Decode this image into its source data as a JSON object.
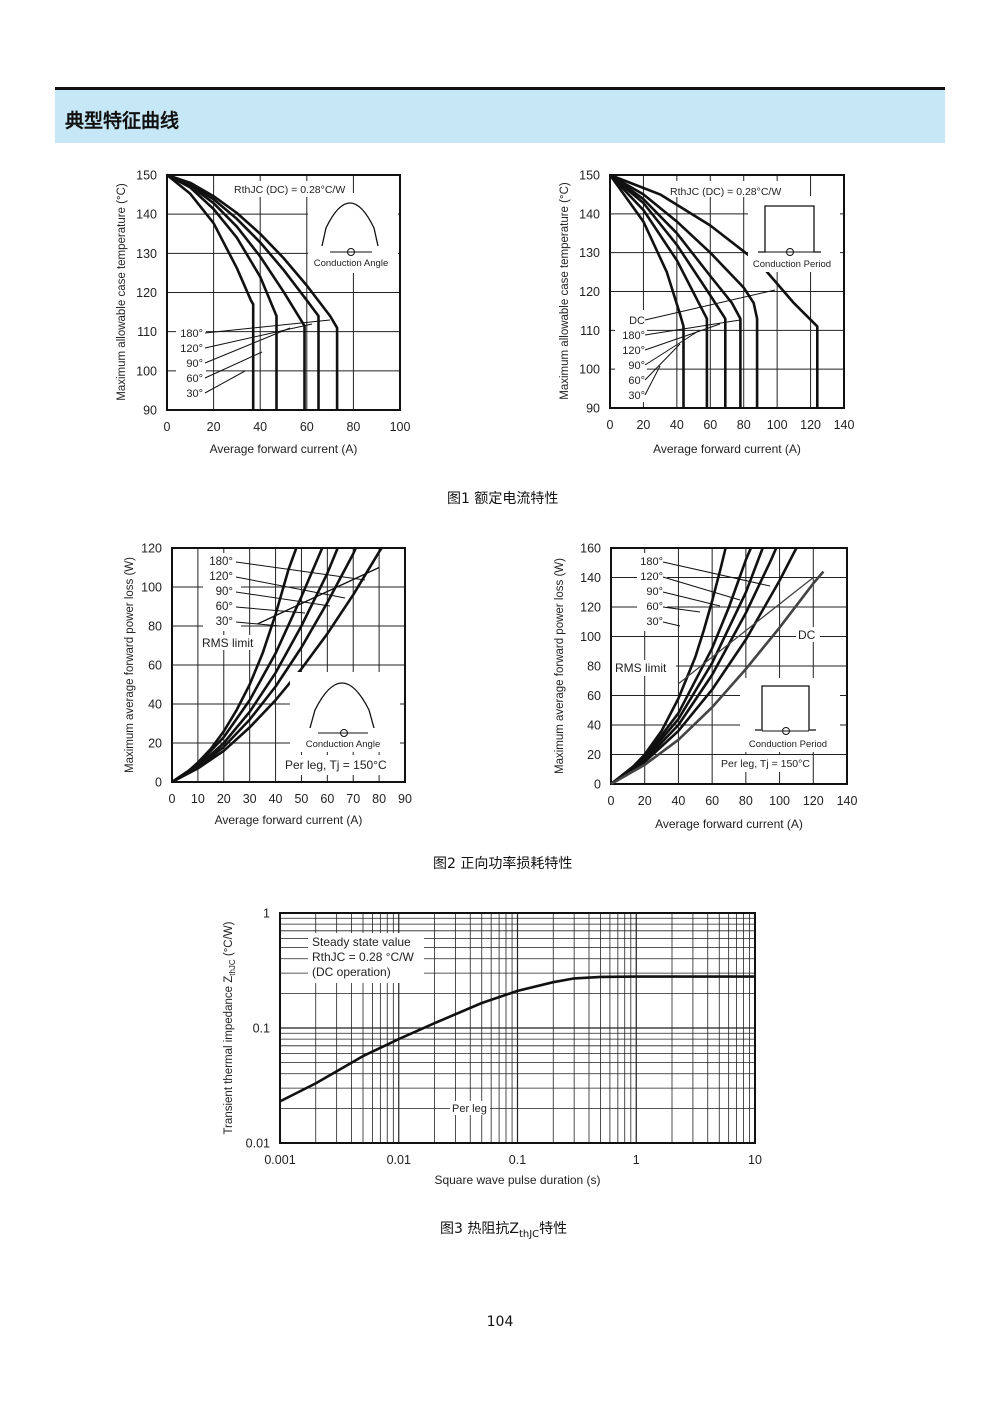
{
  "section_title": "典型特征曲线",
  "figure_captions": {
    "fig1": "图1  额定电流特性",
    "fig2": "图2  正向功率损耗特性",
    "fig3_prefix": "图3  热阻抗Z",
    "fig3_sub": "thJC",
    "fig3_suffix": "特性"
  },
  "page_number": "104",
  "chart_data": [
    {
      "id": "fig1-left",
      "type": "line",
      "xlabel": "Average forward current (A)",
      "ylabel": "Maximum allowable case temperature (°C)",
      "xlim": [
        0,
        100
      ],
      "ylim": [
        90,
        150
      ],
      "x_ticks": [
        0,
        20,
        40,
        60,
        80,
        100
      ],
      "y_ticks": [
        90,
        100,
        110,
        120,
        130,
        140,
        150
      ],
      "grid": true,
      "annotation": "RthJC (DC) = 0.28°C/W",
      "inset_label": "Conduction Angle",
      "series": [
        {
          "name": "30°",
          "points": [
            [
              0,
              150
            ],
            [
              10,
              145.2
            ],
            [
              20,
              137.7
            ],
            [
              30,
              126.2
            ],
            [
              36,
              118
            ],
            [
              37,
              117
            ]
          ],
          "drop_to": 90
        },
        {
          "name": "60°",
          "points": [
            [
              0,
              150
            ],
            [
              10,
              146.8
            ],
            [
              20,
              141.3
            ],
            [
              30,
              134
            ],
            [
              40,
              124
            ],
            [
              47,
              114
            ]
          ],
          "drop_to": 90
        },
        {
          "name": "90°",
          "points": [
            [
              0,
              150
            ],
            [
              10,
              147.3
            ],
            [
              20,
              142.8
            ],
            [
              30,
              136.8
            ],
            [
              40,
              129.2
            ],
            [
              50,
              120.2
            ],
            [
              59,
              111.5
            ]
          ],
          "drop_to": 90
        },
        {
          "name": "120°",
          "points": [
            [
              0,
              150
            ],
            [
              10,
              147.6
            ],
            [
              20,
              143.8
            ],
            [
              30,
              138.8
            ],
            [
              40,
              132.8
            ],
            [
              50,
              125.8
            ],
            [
              60,
              118
            ],
            [
              65,
              114
            ]
          ],
          "drop_to": 90
        },
        {
          "name": "180°",
          "points": [
            [
              0,
              150
            ],
            [
              10,
              148
            ],
            [
              20,
              144.6
            ],
            [
              30,
              140.3
            ],
            [
              40,
              135
            ],
            [
              50,
              128.8
            ],
            [
              60,
              121.8
            ],
            [
              70,
              114
            ],
            [
              73,
              111
            ]
          ],
          "drop_to": 90
        }
      ]
    },
    {
      "id": "fig1-right",
      "type": "line",
      "xlabel": "Average forward current (A)",
      "ylabel": "Maximum allowable case temperature (°C)",
      "xlim": [
        0,
        140
      ],
      "ylim": [
        90,
        150
      ],
      "x_ticks": [
        0,
        20,
        40,
        60,
        80,
        100,
        120,
        140
      ],
      "y_ticks": [
        90,
        100,
        110,
        120,
        130,
        140,
        150
      ],
      "grid": true,
      "annotation": "RthJC (DC) = 0.28°C/W",
      "inset_label": "Conduction Period",
      "series": [
        {
          "name": "30°",
          "points": [
            [
              0,
              150
            ],
            [
              20,
              138
            ],
            [
              34,
              125
            ],
            [
              42,
              114
            ],
            [
              44,
              111
            ]
          ],
          "drop_to": 90
        },
        {
          "name": "60°",
          "points": [
            [
              0,
              150
            ],
            [
              20,
              141
            ],
            [
              40,
              128
            ],
            [
              52,
              118
            ],
            [
              58,
              113
            ]
          ],
          "drop_to": 90
        },
        {
          "name": "90°",
          "points": [
            [
              0,
              150
            ],
            [
              20,
              142.8
            ],
            [
              40,
              132
            ],
            [
              60,
              119
            ],
            [
              69,
              113
            ]
          ],
          "drop_to": 90
        },
        {
          "name": "120°",
          "points": [
            [
              0,
              150
            ],
            [
              20,
              143.8
            ],
            [
              40,
              135
            ],
            [
              60,
              124
            ],
            [
              73,
              117
            ],
            [
              78,
              113
            ]
          ],
          "drop_to": 90
        },
        {
          "name": "180°",
          "points": [
            [
              0,
              150
            ],
            [
              20,
              145
            ],
            [
              40,
              138
            ],
            [
              60,
              130
            ],
            [
              80,
              121
            ],
            [
              86,
              117
            ],
            [
              88,
              113
            ]
          ],
          "drop_to": 90
        },
        {
          "name": "DC",
          "points": [
            [
              0,
              150
            ],
            [
              30,
              145
            ],
            [
              60,
              137
            ],
            [
              90,
              127
            ],
            [
              110,
              117
            ],
            [
              124,
              111
            ]
          ],
          "drop_to": 90
        }
      ]
    },
    {
      "id": "fig2-left",
      "type": "line",
      "xlabel": "Average forward current (A)",
      "ylabel": "Maximum average forward power loss (W)",
      "xlim": [
        0,
        90
      ],
      "ylim": [
        0,
        120
      ],
      "x_ticks": [
        0,
        10,
        20,
        30,
        40,
        50,
        60,
        70,
        80,
        90
      ],
      "y_ticks": [
        0,
        20,
        40,
        60,
        80,
        100,
        120
      ],
      "grid": true,
      "annotations": [
        "Conduction Angle",
        "Per leg, Tj = 150°C"
      ],
      "series": [
        {
          "name": "30°",
          "points": [
            [
              0,
              0
            ],
            [
              5,
              4
            ],
            [
              10,
              10
            ],
            [
              15,
              17
            ],
            [
              20,
              26
            ],
            [
              25,
              37
            ],
            [
              30,
              50
            ],
            [
              35,
              66
            ],
            [
              40,
              86
            ],
            [
              45,
              109
            ],
            [
              48,
              120
            ]
          ]
        },
        {
          "name": "60°",
          "points": [
            [
              0,
              0
            ],
            [
              10,
              9
            ],
            [
              20,
              23
            ],
            [
              30,
              42
            ],
            [
              40,
              66
            ],
            [
              50,
              95
            ],
            [
              58,
              120
            ]
          ]
        },
        {
          "name": "90°",
          "points": [
            [
              0,
              0
            ],
            [
              10,
              8
            ],
            [
              20,
              20
            ],
            [
              30,
              36
            ],
            [
              40,
              56
            ],
            [
              50,
              80
            ],
            [
              60,
              107
            ],
            [
              64,
              120
            ]
          ]
        },
        {
          "name": "120°",
          "points": [
            [
              0,
              0
            ],
            [
              10,
              7.5
            ],
            [
              20,
              18
            ],
            [
              30,
              32
            ],
            [
              40,
              49
            ],
            [
              50,
              69
            ],
            [
              60,
              92
            ],
            [
              70,
              117
            ],
            [
              71,
              120
            ]
          ]
        },
        {
          "name": "180°",
          "points": [
            [
              0,
              0
            ],
            [
              10,
              7
            ],
            [
              20,
              16
            ],
            [
              30,
              28
            ],
            [
              40,
              42
            ],
            [
              50,
              58
            ],
            [
              60,
              76
            ],
            [
              70,
              96
            ],
            [
              80,
              118
            ],
            [
              81,
              120
            ]
          ]
        },
        {
          "name": "RMS limit",
          "points": [
            [
              33,
              81
            ],
            [
              80,
              110
            ]
          ]
        }
      ]
    },
    {
      "id": "fig2-right",
      "type": "line",
      "xlabel": "Average forward current (A)",
      "ylabel": "Maximum average forward power loss (W)",
      "xlim": [
        0,
        140
      ],
      "ylim": [
        0,
        160
      ],
      "x_ticks": [
        0,
        20,
        40,
        60,
        80,
        100,
        120,
        140
      ],
      "y_ticks": [
        0,
        20,
        40,
        60,
        80,
        100,
        120,
        140,
        160
      ],
      "grid": true,
      "annotations": [
        "Conduction Period",
        "Per leg, Tj = 150°C"
      ],
      "series": [
        {
          "name": "30°",
          "points": [
            [
              0,
              0
            ],
            [
              10,
              8
            ],
            [
              20,
              20
            ],
            [
              30,
              36
            ],
            [
              40,
              58
            ],
            [
              50,
              86
            ],
            [
              55,
              104
            ],
            [
              60,
              124
            ],
            [
              65,
              146
            ],
            [
              68,
              160
            ]
          ]
        },
        {
          "name": "60°",
          "points": [
            [
              0,
              0
            ],
            [
              20,
              18
            ],
            [
              40,
              48
            ],
            [
              60,
              92
            ],
            [
              70,
              120
            ],
            [
              80,
              152
            ],
            [
              83,
              160
            ]
          ]
        },
        {
          "name": "90°",
          "points": [
            [
              0,
              0
            ],
            [
              20,
              17
            ],
            [
              40,
              44
            ],
            [
              60,
              82
            ],
            [
              80,
              130
            ],
            [
              90,
              160
            ]
          ]
        },
        {
          "name": "120°",
          "points": [
            [
              0,
              0
            ],
            [
              20,
              16
            ],
            [
              40,
              40
            ],
            [
              60,
              74
            ],
            [
              80,
              116
            ],
            [
              95,
              152
            ],
            [
              98,
              160
            ]
          ]
        },
        {
          "name": "180°",
          "points": [
            [
              0,
              0
            ],
            [
              20,
              15
            ],
            [
              40,
              36
            ],
            [
              60,
              64
            ],
            [
              80,
              98
            ],
            [
              100,
              138
            ],
            [
              110,
              160
            ]
          ]
        },
        {
          "name": "DC",
          "points": [
            [
              0,
              0
            ],
            [
              20,
              13
            ],
            [
              40,
              30
            ],
            [
              60,
              52
            ],
            [
              80,
              78
            ],
            [
              100,
              106
            ],
            [
              120,
              136
            ],
            [
              126,
              144
            ]
          ]
        },
        {
          "name": "RMS limit",
          "points": [
            [
              40,
              68
            ],
            [
              120,
              140
            ]
          ]
        }
      ]
    },
    {
      "id": "fig3",
      "type": "line",
      "xlabel": "Square wave pulse duration (s)",
      "ylabel": "Transient thermal impedance Z",
      "ylabel_sub": "thJC",
      "ylabel_unit": " (°C/W)",
      "xscale": "log",
      "yscale": "log",
      "xlim": [
        0.001,
        10
      ],
      "ylim": [
        0.01,
        1
      ],
      "x_ticks": [
        "0.001",
        "0.01",
        "0.1",
        "1",
        "10"
      ],
      "y_ticks": [
        "0.01",
        "0.1",
        "1"
      ],
      "grid": true,
      "annotations": [
        "Steady state value",
        "RthJC = 0.28 °C/W",
        "(DC operation)",
        "Per leg"
      ],
      "series": [
        {
          "name": "Per leg",
          "points": [
            [
              0.001,
              0.023
            ],
            [
              0.002,
              0.033
            ],
            [
              0.005,
              0.057
            ],
            [
              0.01,
              0.08
            ],
            [
              0.02,
              0.11
            ],
            [
              0.05,
              0.165
            ],
            [
              0.1,
              0.21
            ],
            [
              0.2,
              0.25
            ],
            [
              0.3,
              0.27
            ],
            [
              0.5,
              0.278
            ],
            [
              1,
              0.28
            ],
            [
              10,
              0.28
            ]
          ]
        }
      ]
    }
  ]
}
